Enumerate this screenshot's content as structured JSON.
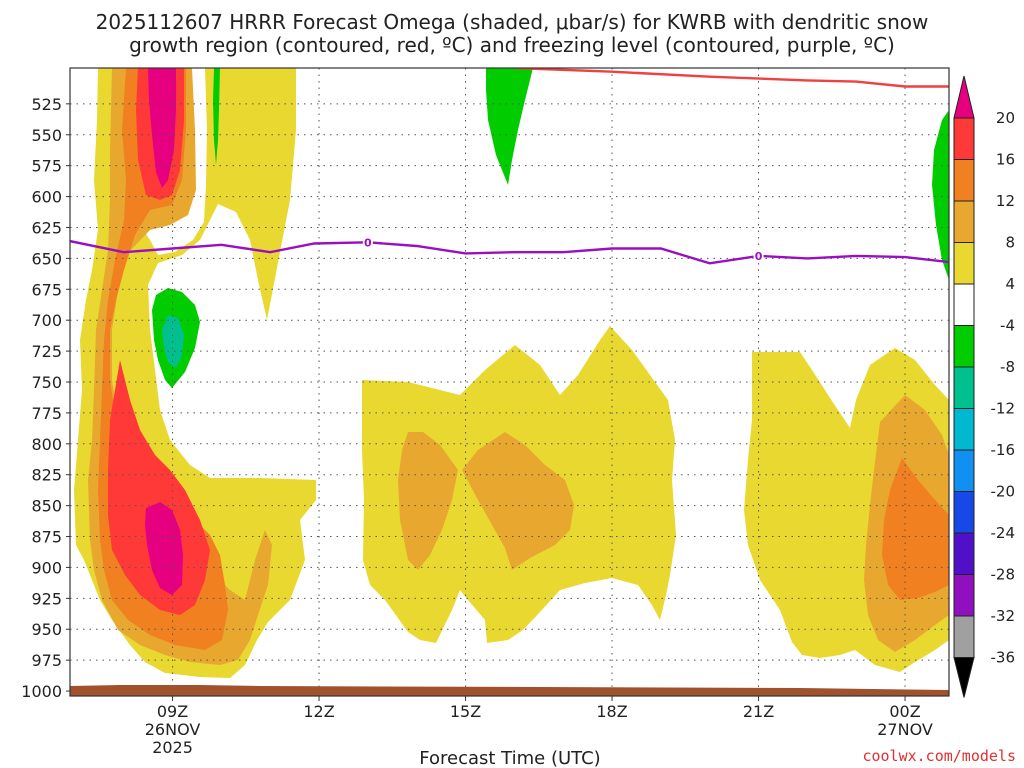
{
  "chart_data": {
    "type": "contour",
    "title_line1": "2025112607 HRRR Forecast Omega (shaded, μbar/s) for KWRB with dendritic snow",
    "title_line2": "growth region (contoured, red, ºC) and freezing level (contoured, purple, ºC)",
    "xlabel": "Forecast Time (UTC)",
    "credit": "coolwx.com/models",
    "x_range_hours": [
      6.9,
      24.9
    ],
    "x_ticks": [
      {
        "hour": 9,
        "label": "09Z",
        "date": "26NOV",
        "year": "2025"
      },
      {
        "hour": 12,
        "label": "12Z"
      },
      {
        "hour": 15,
        "label": "15Z"
      },
      {
        "hour": 18,
        "label": "18Z"
      },
      {
        "hour": 21,
        "label": "21Z"
      },
      {
        "hour": 24,
        "label": "00Z",
        "date": "27NOV"
      }
    ],
    "y_range_hpa": [
      1004,
      496
    ],
    "y_ticks": [
      525,
      550,
      575,
      600,
      625,
      650,
      675,
      700,
      725,
      750,
      775,
      800,
      825,
      850,
      875,
      900,
      925,
      950,
      975,
      1000
    ],
    "colorbar": {
      "levels": [
        "20",
        "16",
        "12",
        "8",
        "4",
        "-4",
        "-8",
        "-12",
        "-16",
        "-20",
        "-24",
        "-28",
        "-32",
        "-36"
      ],
      "colors": [
        "#e60080",
        "#ff3838",
        "#f08020",
        "#e8a830",
        "#e8d830",
        "#ffffff",
        "#00cc00",
        "#00c090",
        "#00b8d0",
        "#1090f0",
        "#1848e8",
        "#5010c8",
        "#9010c0",
        "#a0a0a0",
        "#000000"
      ]
    },
    "freezing_level": {
      "label": "0",
      "color": "#9a10c0",
      "hours": [
        6.9,
        8.0,
        9.0,
        10.0,
        11.0,
        11.9,
        13.0,
        14.0,
        15.0,
        16.0,
        17.0,
        18.0,
        19.0,
        20.0,
        21.0,
        22.0,
        23.0,
        24.0,
        24.9
      ],
      "hpa": [
        636,
        645,
        642,
        639,
        645,
        638,
        637,
        640,
        646,
        645,
        645,
        642,
        642,
        654,
        648,
        650,
        648,
        649,
        653
      ]
    },
    "dgz_top": {
      "color": "#f04040",
      "hours": [
        16.0,
        18.0,
        20.0,
        22.0,
        23.0,
        24.0,
        24.9
      ],
      "hpa": [
        496,
        499,
        503,
        506,
        507,
        511,
        511
      ]
    },
    "omega_regions": [
      {
        "name": "yellow-early-updraft",
        "value": 4,
        "color": "#e8d830"
      },
      {
        "name": "orange-early-core",
        "value": 12,
        "color": "#f08020"
      },
      {
        "name": "magenta-upper-max",
        "value": 20,
        "color": "#e60080"
      },
      {
        "name": "magenta-lower-max",
        "value": 20,
        "color": "#e60080"
      },
      {
        "name": "green-upper-downdraft",
        "value": -8,
        "color": "#00cc00"
      },
      {
        "name": "teal-mid-downdraft",
        "value": -12,
        "color": "#00c090"
      },
      {
        "name": "yellow-14z-18z-band",
        "value": 4,
        "color": "#e8d830"
      },
      {
        "name": "yellow-22z-00z-band",
        "value": 4,
        "color": "#e8d830"
      },
      {
        "name": "orange-00z-core",
        "value": 12,
        "color": "#f08020"
      }
    ],
    "terrain_color": "#a0522d"
  }
}
